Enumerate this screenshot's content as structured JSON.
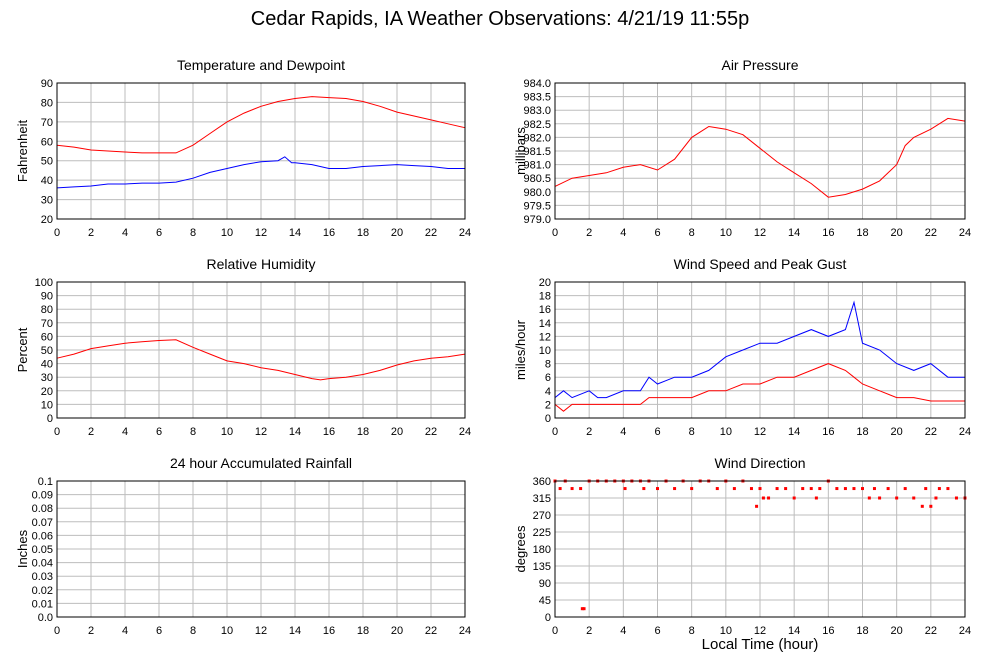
{
  "title": "Cedar Rapids, IA Weather Observations: 4/21/19 11:55p",
  "xlabel": "Local Time (hour)",
  "colors": {
    "red": "#ff0000",
    "blue": "#0000ff",
    "grid": "#bdbdbd"
  },
  "chart_data": [
    {
      "id": "temperature",
      "type": "line",
      "title": "Temperature and Dewpoint",
      "ylabel": "Fahrenheit",
      "xlim": [
        0,
        24
      ],
      "ylim": [
        20,
        90
      ],
      "yticks": [
        20,
        30,
        40,
        50,
        60,
        70,
        80,
        90
      ],
      "xticks": [
        0,
        2,
        4,
        6,
        8,
        10,
        12,
        14,
        16,
        18,
        20,
        22,
        24
      ],
      "grid": true,
      "series": [
        {
          "color": "#ff0000",
          "points": [
            [
              0,
              58
            ],
            [
              1,
              57
            ],
            [
              2,
              55.5
            ],
            [
              3,
              55
            ],
            [
              4,
              54.5
            ],
            [
              5,
              54
            ],
            [
              6,
              54
            ],
            [
              7,
              54
            ],
            [
              8,
              58
            ],
            [
              9,
              64
            ],
            [
              10,
              70
            ],
            [
              11,
              74.5
            ],
            [
              12,
              78
            ],
            [
              13,
              80.5
            ],
            [
              14,
              82
            ],
            [
              15,
              83
            ],
            [
              16,
              82.5
            ],
            [
              17,
              82
            ],
            [
              18,
              80.5
            ],
            [
              19,
              78
            ],
            [
              20,
              75
            ],
            [
              21,
              73
            ],
            [
              22,
              71
            ],
            [
              23,
              69
            ],
            [
              24,
              67
            ]
          ]
        },
        {
          "color": "#0000ff",
          "points": [
            [
              0,
              36
            ],
            [
              1,
              36.5
            ],
            [
              2,
              37
            ],
            [
              3,
              38
            ],
            [
              4,
              38
            ],
            [
              5,
              38.5
            ],
            [
              6,
              38.5
            ],
            [
              7,
              39
            ],
            [
              8,
              41
            ],
            [
              9,
              44
            ],
            [
              10,
              46
            ],
            [
              11,
              48
            ],
            [
              12,
              49.5
            ],
            [
              13,
              50
            ],
            [
              13.4,
              52
            ],
            [
              13.8,
              49
            ],
            [
              14,
              49
            ],
            [
              15,
              48
            ],
            [
              16,
              46
            ],
            [
              17,
              46
            ],
            [
              18,
              47
            ],
            [
              19,
              47.5
            ],
            [
              20,
              48
            ],
            [
              21,
              47.5
            ],
            [
              22,
              47
            ],
            [
              23,
              46
            ],
            [
              24,
              46
            ]
          ]
        }
      ]
    },
    {
      "id": "pressure",
      "type": "line",
      "title": "Air Pressure",
      "ylabel": "millibars",
      "xlim": [
        0,
        24
      ],
      "ylim": [
        979.0,
        984.0
      ],
      "yticks": [
        "979.0",
        "979.5",
        "980.0",
        "980.5",
        "981.0",
        "981.5",
        "982.0",
        "982.5",
        "983.0",
        "983.5",
        "984.0"
      ],
      "xticks": [
        0,
        2,
        4,
        6,
        8,
        10,
        12,
        14,
        16,
        18,
        20,
        22,
        24
      ],
      "grid": true,
      "series": [
        {
          "color": "#ff0000",
          "points": [
            [
              0,
              980.2
            ],
            [
              1,
              980.5
            ],
            [
              2,
              980.6
            ],
            [
              3,
              980.7
            ],
            [
              4,
              980.9
            ],
            [
              5,
              981.0
            ],
            [
              6,
              980.8
            ],
            [
              7,
              981.2
            ],
            [
              8,
              982.0
            ],
            [
              9,
              982.4
            ],
            [
              10,
              982.3
            ],
            [
              11,
              982.1
            ],
            [
              12,
              981.6
            ],
            [
              13,
              981.1
            ],
            [
              14,
              980.7
            ],
            [
              15,
              980.3
            ],
            [
              16,
              979.8
            ],
            [
              17,
              979.9
            ],
            [
              18,
              980.1
            ],
            [
              19,
              980.4
            ],
            [
              20,
              981.0
            ],
            [
              20.5,
              981.7
            ],
            [
              21,
              982.0
            ],
            [
              22,
              982.3
            ],
            [
              23,
              982.7
            ],
            [
              24,
              982.6
            ]
          ]
        }
      ]
    },
    {
      "id": "humidity",
      "type": "line",
      "title": "Relative Humidity",
      "ylabel": "Percent",
      "xlim": [
        0,
        24
      ],
      "ylim": [
        0,
        100
      ],
      "yticks": [
        0,
        10,
        20,
        30,
        40,
        50,
        60,
        70,
        80,
        90,
        100
      ],
      "xticks": [
        0,
        2,
        4,
        6,
        8,
        10,
        12,
        14,
        16,
        18,
        20,
        22,
        24
      ],
      "grid": true,
      "series": [
        {
          "color": "#ff0000",
          "points": [
            [
              0,
              44
            ],
            [
              1,
              47
            ],
            [
              2,
              51
            ],
            [
              3,
              53
            ],
            [
              4,
              55
            ],
            [
              5,
              56
            ],
            [
              6,
              57
            ],
            [
              7,
              57.5
            ],
            [
              8,
              52
            ],
            [
              9,
              47
            ],
            [
              10,
              42
            ],
            [
              11,
              40
            ],
            [
              12,
              37
            ],
            [
              13,
              35
            ],
            [
              14,
              32
            ],
            [
              15,
              29
            ],
            [
              15.5,
              28
            ],
            [
              16,
              29
            ],
            [
              17,
              30
            ],
            [
              18,
              32
            ],
            [
              19,
              35
            ],
            [
              20,
              39
            ],
            [
              21,
              42
            ],
            [
              22,
              44
            ],
            [
              23,
              45
            ],
            [
              24,
              47
            ]
          ]
        }
      ]
    },
    {
      "id": "wind-speed",
      "type": "line",
      "title": "Wind Speed and Peak Gust",
      "ylabel": "miles/hour",
      "xlim": [
        0,
        24
      ],
      "ylim": [
        0,
        20
      ],
      "yticks": [
        0,
        2,
        4,
        6,
        8,
        10,
        12,
        14,
        16,
        18,
        20
      ],
      "xticks": [
        0,
        2,
        4,
        6,
        8,
        10,
        12,
        14,
        16,
        18,
        20,
        22,
        24
      ],
      "grid": true,
      "series": [
        {
          "color": "#ff0000",
          "points": [
            [
              0,
              2
            ],
            [
              0.5,
              1
            ],
            [
              1,
              2
            ],
            [
              2,
              2
            ],
            [
              3,
              2
            ],
            [
              4,
              2
            ],
            [
              5,
              2
            ],
            [
              5.5,
              3
            ],
            [
              6,
              3
            ],
            [
              7,
              3
            ],
            [
              8,
              3
            ],
            [
              9,
              4
            ],
            [
              10,
              4
            ],
            [
              11,
              5
            ],
            [
              12,
              5
            ],
            [
              13,
              6
            ],
            [
              14,
              6
            ],
            [
              15,
              7
            ],
            [
              16,
              8
            ],
            [
              17,
              7
            ],
            [
              17.5,
              6
            ],
            [
              18,
              5
            ],
            [
              19,
              4
            ],
            [
              20,
              3
            ],
            [
              21,
              3
            ],
            [
              22,
              2.5
            ],
            [
              23,
              2.5
            ],
            [
              24,
              2.5
            ]
          ]
        },
        {
          "color": "#0000ff",
          "points": [
            [
              0,
              3
            ],
            [
              0.5,
              4
            ],
            [
              1,
              3
            ],
            [
              2,
              4
            ],
            [
              2.5,
              3
            ],
            [
              3,
              3
            ],
            [
              4,
              4
            ],
            [
              5,
              4
            ],
            [
              5.5,
              6
            ],
            [
              6,
              5
            ],
            [
              7,
              6
            ],
            [
              8,
              6
            ],
            [
              9,
              7
            ],
            [
              10,
              9
            ],
            [
              11,
              10
            ],
            [
              12,
              11
            ],
            [
              13,
              11
            ],
            [
              14,
              12
            ],
            [
              15,
              13
            ],
            [
              16,
              12
            ],
            [
              17,
              13
            ],
            [
              17.5,
              17
            ],
            [
              18,
              11
            ],
            [
              19,
              10
            ],
            [
              20,
              8
            ],
            [
              21,
              7
            ],
            [
              22,
              8
            ],
            [
              23,
              6
            ],
            [
              24,
              6
            ]
          ]
        }
      ]
    },
    {
      "id": "rainfall",
      "type": "line",
      "title": "24 hour Accumulated Rainfall",
      "ylabel": "Inches",
      "xlim": [
        0,
        24
      ],
      "ylim": [
        0,
        0.1
      ],
      "yticks": [
        "0.0",
        "0.01",
        "0.02",
        "0.03",
        "0.04",
        "0.05",
        "0.06",
        "0.07",
        "0.08",
        "0.09",
        "0.1"
      ],
      "xticks": [
        0,
        2,
        4,
        6,
        8,
        10,
        12,
        14,
        16,
        18,
        20,
        22,
        24
      ],
      "grid": true,
      "series": [
        {
          "color": "#ff0000",
          "points": [
            [
              0,
              0
            ],
            [
              24,
              0
            ]
          ]
        }
      ]
    },
    {
      "id": "wind-direction",
      "type": "scatter",
      "title": "Wind Direction",
      "ylabel": "degrees",
      "xlim": [
        0,
        24
      ],
      "ylim": [
        0,
        360
      ],
      "yticks": [
        0,
        45,
        90,
        135,
        180,
        225,
        270,
        315,
        360
      ],
      "xticks": [
        0,
        2,
        4,
        6,
        8,
        10,
        12,
        14,
        16,
        18,
        20,
        22,
        24
      ],
      "grid": true,
      "series": [
        {
          "color": "#ff0000",
          "points": [
            [
              0,
              360
            ],
            [
              0.3,
              340
            ],
            [
              0.6,
              360
            ],
            [
              1,
              340
            ],
            [
              1.5,
              340
            ],
            [
              1.6,
              22
            ],
            [
              1.7,
              22
            ],
            [
              2,
              360
            ],
            [
              2.5,
              360
            ],
            [
              3,
              360
            ],
            [
              3.5,
              360
            ],
            [
              4,
              360
            ],
            [
              4.1,
              340
            ],
            [
              4.5,
              360
            ],
            [
              5,
              360
            ],
            [
              5.2,
              340
            ],
            [
              5.5,
              360
            ],
            [
              6,
              340
            ],
            [
              6.5,
              360
            ],
            [
              7,
              340
            ],
            [
              7.5,
              360
            ],
            [
              8,
              340
            ],
            [
              8.5,
              360
            ],
            [
              9,
              360
            ],
            [
              9.5,
              340
            ],
            [
              10,
              360
            ],
            [
              10.5,
              340
            ],
            [
              11,
              360
            ],
            [
              11.5,
              340
            ],
            [
              11.8,
              293
            ],
            [
              12,
              340
            ],
            [
              12.2,
              315
            ],
            [
              12.5,
              315
            ],
            [
              13,
              340
            ],
            [
              13.5,
              340
            ],
            [
              14,
              315
            ],
            [
              14.5,
              340
            ],
            [
              15,
              340
            ],
            [
              15.3,
              315
            ],
            [
              15.5,
              340
            ],
            [
              16,
              360
            ],
            [
              16.5,
              340
            ],
            [
              17,
              340
            ],
            [
              17.5,
              340
            ],
            [
              18,
              340
            ],
            [
              18.4,
              315
            ],
            [
              18.7,
              340
            ],
            [
              19,
              315
            ],
            [
              19.5,
              340
            ],
            [
              20,
              315
            ],
            [
              20.5,
              340
            ],
            [
              21,
              315
            ],
            [
              21.5,
              293
            ],
            [
              21.7,
              340
            ],
            [
              22,
              293
            ],
            [
              22.3,
              315
            ],
            [
              22.5,
              340
            ],
            [
              23,
              340
            ],
            [
              23.5,
              315
            ],
            [
              24,
              315
            ]
          ]
        }
      ]
    }
  ]
}
